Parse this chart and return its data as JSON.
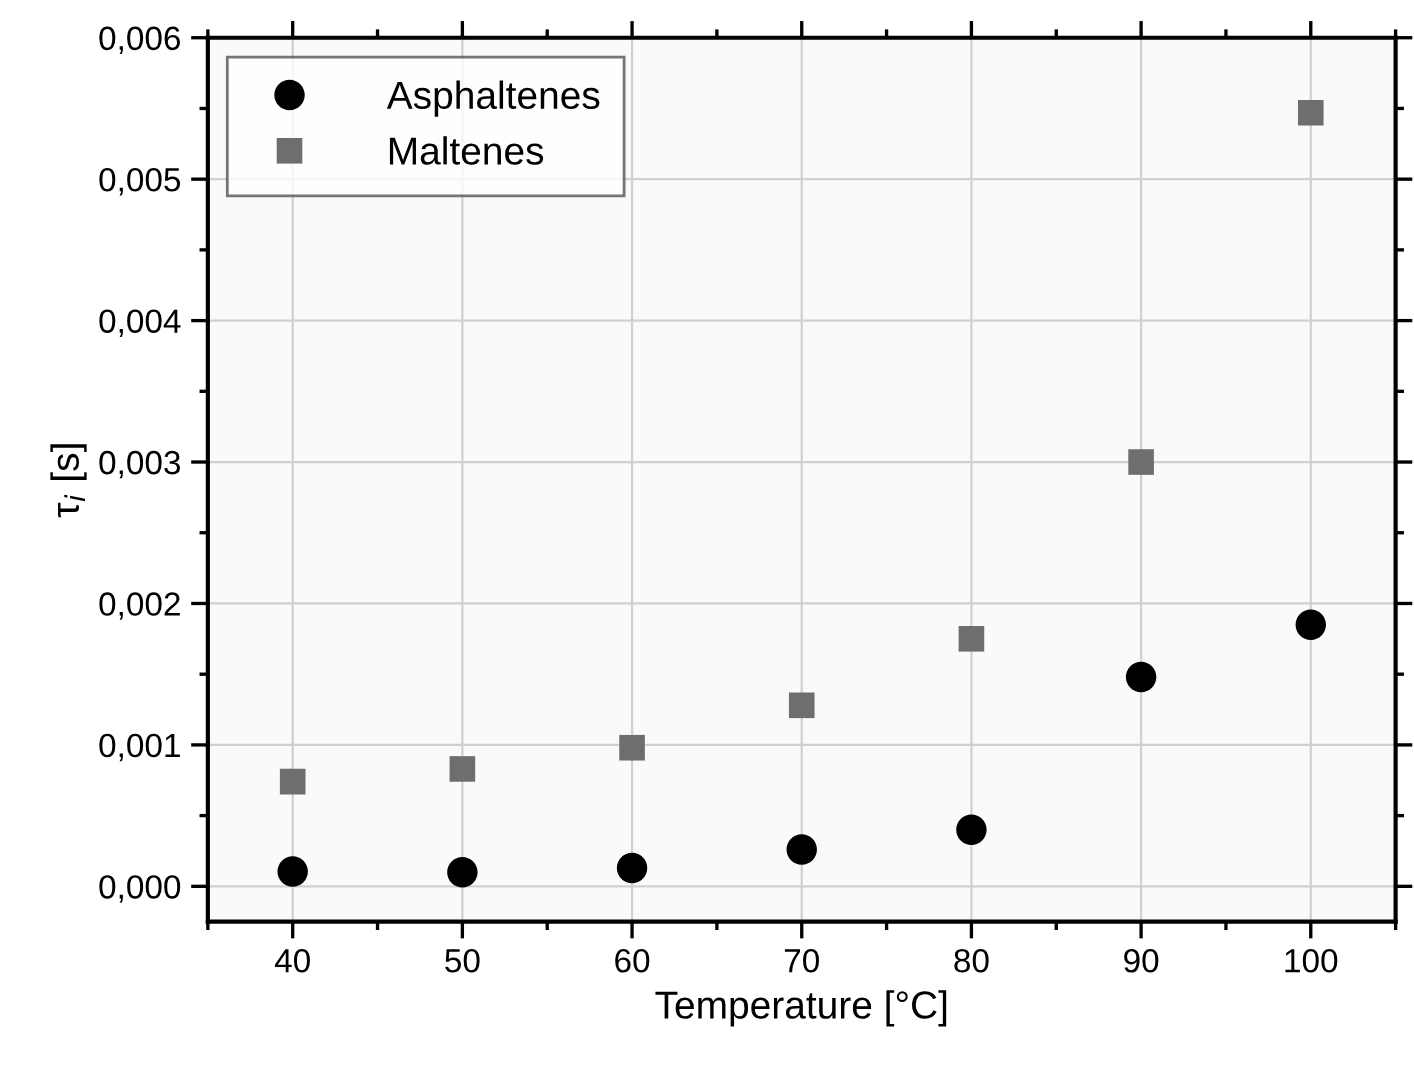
{
  "chart_data": {
    "type": "scatter",
    "xlabel": "Temperature [°C]",
    "ylabel": "τ$_{i}$ [s]",
    "x": [
      40,
      50,
      60,
      70,
      80,
      90,
      100
    ],
    "series": [
      {
        "name": "Asphaltenes",
        "color": "#000000",
        "marker": "circle",
        "values": [
          0.000105,
          0.0001,
          0.00013,
          0.00026,
          0.0004,
          0.00148,
          0.00185
        ]
      },
      {
        "name": "Maltenes",
        "color": "#6e6e6e",
        "marker": "square",
        "values": [
          0.00074,
          0.00083,
          0.00098,
          0.00128,
          0.00175,
          0.003,
          0.00547
        ]
      }
    ],
    "xlim": [
      35,
      105
    ],
    "xticks": [
      40,
      50,
      60,
      70,
      80,
      90,
      100
    ],
    "ylim": [
      -0.00025,
      0.006
    ],
    "yticks": [
      {
        "value": 0,
        "label": "0,000"
      },
      {
        "value": 0.001,
        "label": "0,001"
      },
      {
        "value": 0.002,
        "label": "0,002"
      },
      {
        "value": 0.003,
        "label": "0,003"
      },
      {
        "value": 0.004,
        "label": "0,004"
      },
      {
        "value": 0.005,
        "label": "0,005"
      },
      {
        "value": 0.006,
        "label": "0,006"
      }
    ],
    "grid": true,
    "legend": "top left"
  }
}
